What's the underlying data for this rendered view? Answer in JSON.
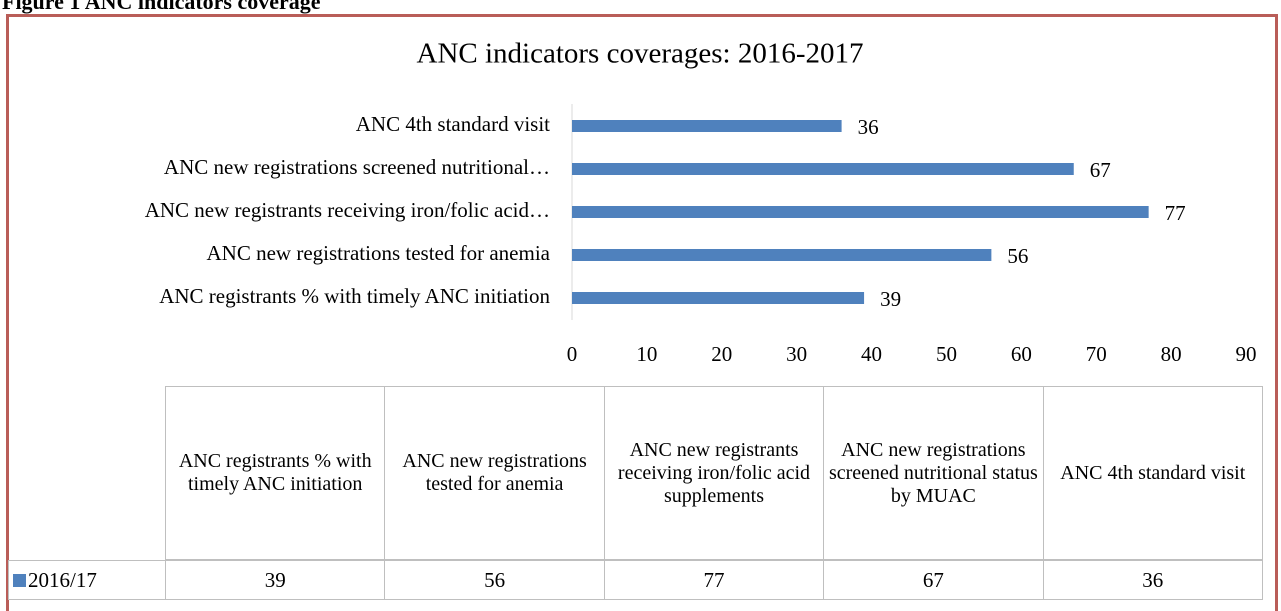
{
  "caption": "Figure 1 ANC indicators coverage",
  "chart_data": {
    "type": "bar",
    "orientation": "horizontal",
    "title": "ANC indicators coverages: 2016-2017",
    "categories": [
      "ANC registrants % with timely ANC initiation",
      "ANC new registrations tested for anemia",
      "ANC new registrants receiving iron/folic acid…",
      "ANC new registrations screened nutritional…",
      "ANC 4th standard visit"
    ],
    "table_headers": [
      "ANC registrants % with timely ANC initiation",
      "ANC new registrations tested for anemia",
      "ANC new registrants receiving iron/folic acid supplements",
      "ANC new registrations screened nutritional status by MUAC",
      "ANC 4th standard visit"
    ],
    "series": [
      {
        "name": "2016/17",
        "color": "#4f81bd",
        "values": [
          39,
          56,
          77,
          67,
          36
        ]
      }
    ],
    "xlim": [
      0,
      90
    ],
    "xticks": [
      0,
      10,
      20,
      30,
      40,
      50,
      60,
      70,
      80,
      90
    ]
  }
}
